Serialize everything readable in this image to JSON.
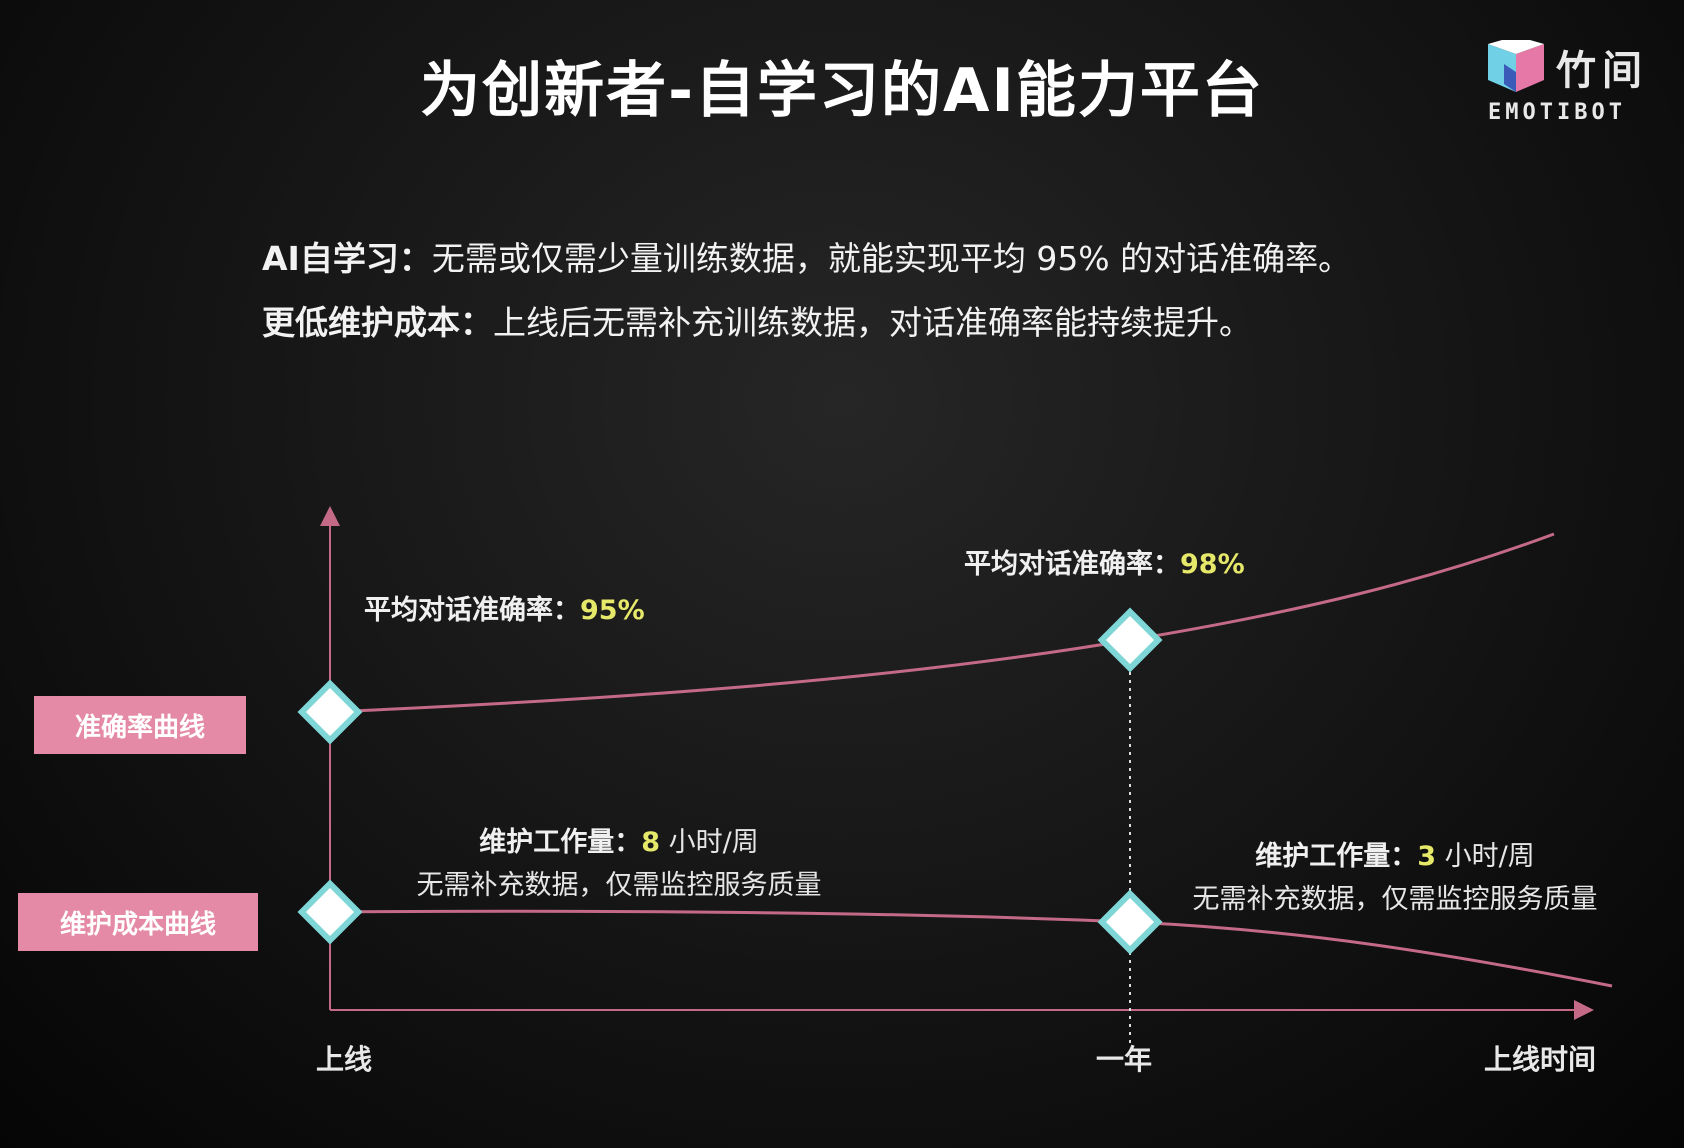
{
  "title": "为创新者-自学习的AI能力平台",
  "logo": {
    "name_cn": "竹间",
    "name_en": "EMOTIBOT"
  },
  "intro": [
    {
      "label": "AI自学习：",
      "text": "无需或仅需少量训练数据，就能实现平均 95% 的对话准确率。"
    },
    {
      "label": "更低维护成本：",
      "text": "上线后无需补充训练数据，对话准确率能持续提升。"
    }
  ],
  "curves": {
    "accuracy_label": "准确率曲线",
    "cost_label": "维护成本曲线"
  },
  "annotations": {
    "acc_start_prefix": "平均对话准确率：",
    "acc_start_value": "95%",
    "acc_year_prefix": "平均对话准确率：",
    "acc_year_value": "98%",
    "cost_start_prefix": "维护工作量：",
    "cost_start_value": "8",
    "cost_start_suffix": " 小时/周",
    "cost_start_note": "无需补充数据，仅需监控服务质量",
    "cost_year_prefix": "维护工作量：",
    "cost_year_value": "3",
    "cost_year_suffix": " 小时/周",
    "cost_year_note": "无需补充数据，仅需监控服务质量"
  },
  "x_axis": {
    "start": "上线",
    "year": "一年",
    "end": "上线时间"
  },
  "colors": {
    "curve": "#c46a86",
    "label_bg": "#e48aa6",
    "highlight": "#e6e86a",
    "marker": "#7fd6d6"
  }
}
